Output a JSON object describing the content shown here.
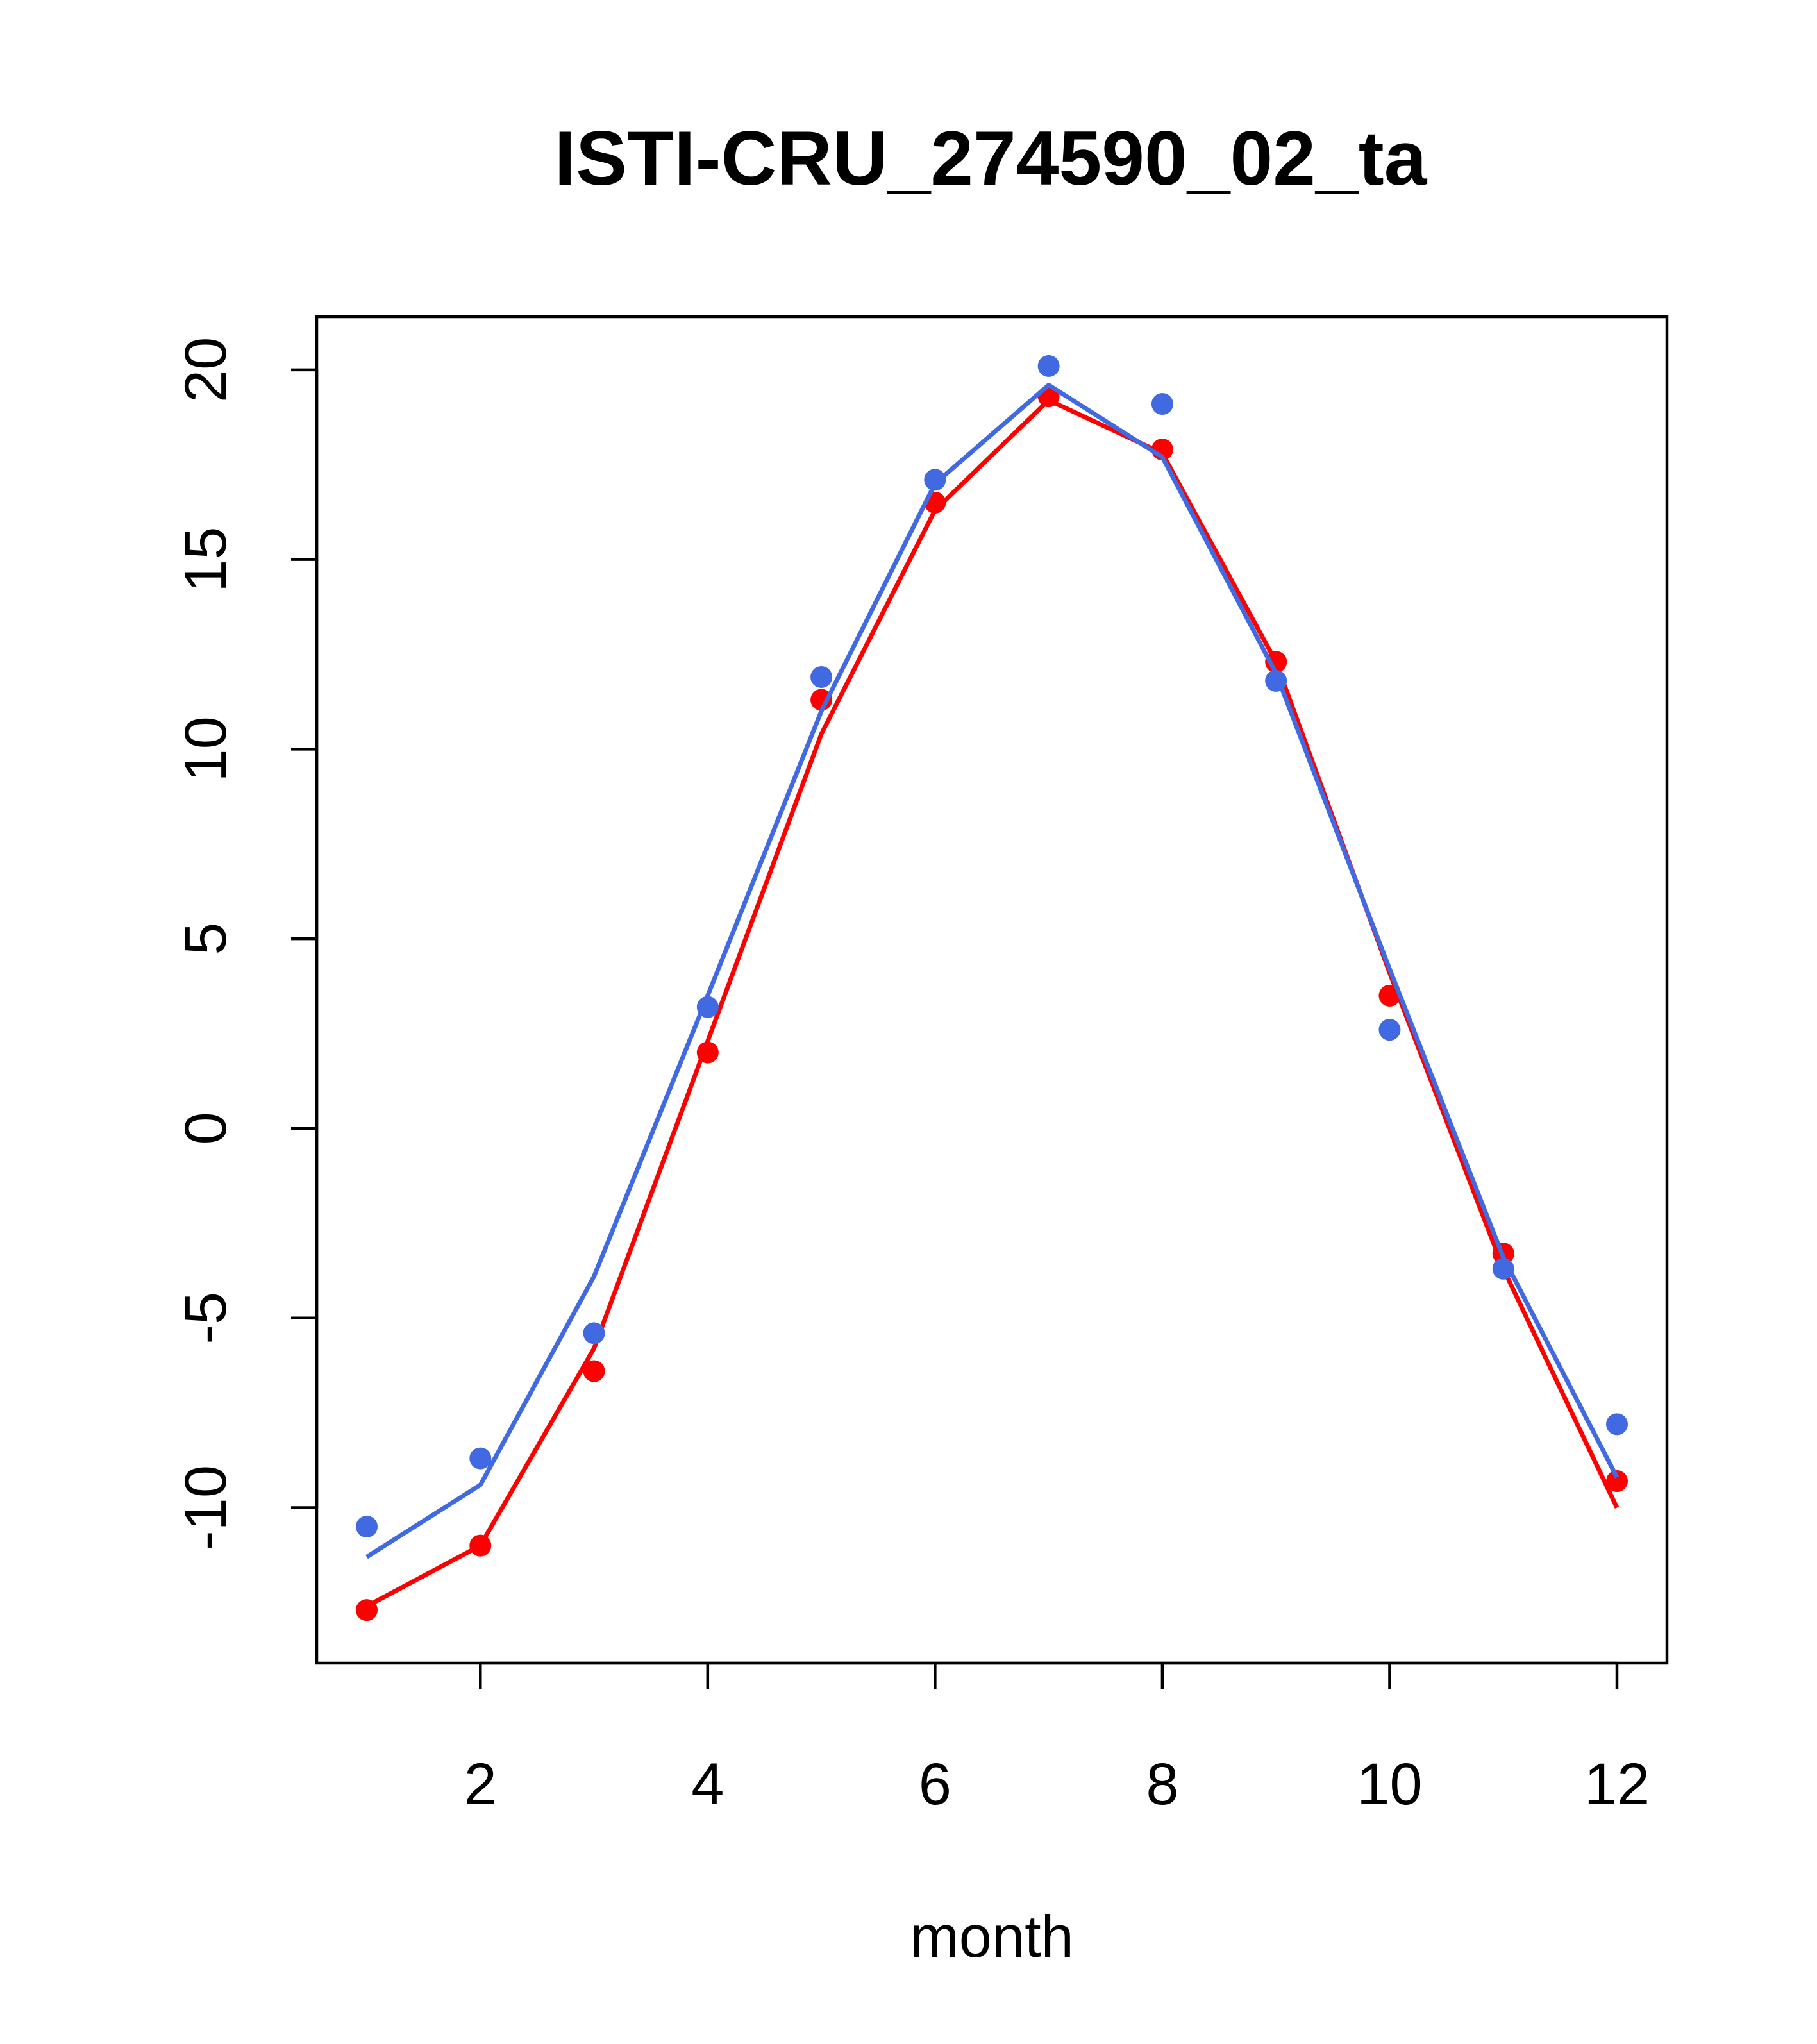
{
  "chart_data": {
    "type": "line",
    "title": "ISTI-CRU_274590_02_ta",
    "xlabel": "month",
    "ylabel": "",
    "xlim": [
      0.56,
      12.44
    ],
    "ylim": [
      -14.1,
      21.4
    ],
    "x_ticks": [
      2,
      4,
      6,
      8,
      10,
      12
    ],
    "y_ticks": [
      -10,
      -5,
      0,
      5,
      10,
      15,
      20
    ],
    "x_tick_labels": [
      "2",
      "4",
      "6",
      "8",
      "10",
      "12"
    ],
    "y_tick_labels": [
      "-10",
      "-5",
      "0",
      "5",
      "10",
      "15",
      "20"
    ],
    "grid": false,
    "series": [
      {
        "color": "#ff0000",
        "x": [
          1,
          2,
          3,
          4,
          5,
          6,
          7,
          8,
          9,
          10,
          11,
          12
        ],
        "points": [
          -12.7,
          -11.0,
          -6.4,
          2.0,
          11.3,
          16.5,
          19.3,
          17.9,
          12.3,
          3.5,
          -3.3,
          -9.3
        ],
        "line": [
          -12.6,
          -11.0,
          -5.8,
          2.3,
          10.4,
          16.3,
          19.2,
          17.8,
          12.3,
          4.1,
          -3.7,
          -10.0
        ]
      },
      {
        "color": "#4169e1",
        "x": [
          1,
          2,
          3,
          4,
          5,
          6,
          7,
          8,
          9,
          10,
          11,
          12
        ],
        "points": [
          -10.5,
          -8.7,
          -5.4,
          3.2,
          11.9,
          17.1,
          20.1,
          19.1,
          11.8,
          2.6,
          -3.7,
          -7.8
        ],
        "line": [
          -11.3,
          -9.4,
          -3.9,
          3.5,
          11.0,
          17.0,
          19.6,
          17.7,
          12.0,
          4.2,
          -3.4,
          -9.2
        ]
      }
    ]
  }
}
